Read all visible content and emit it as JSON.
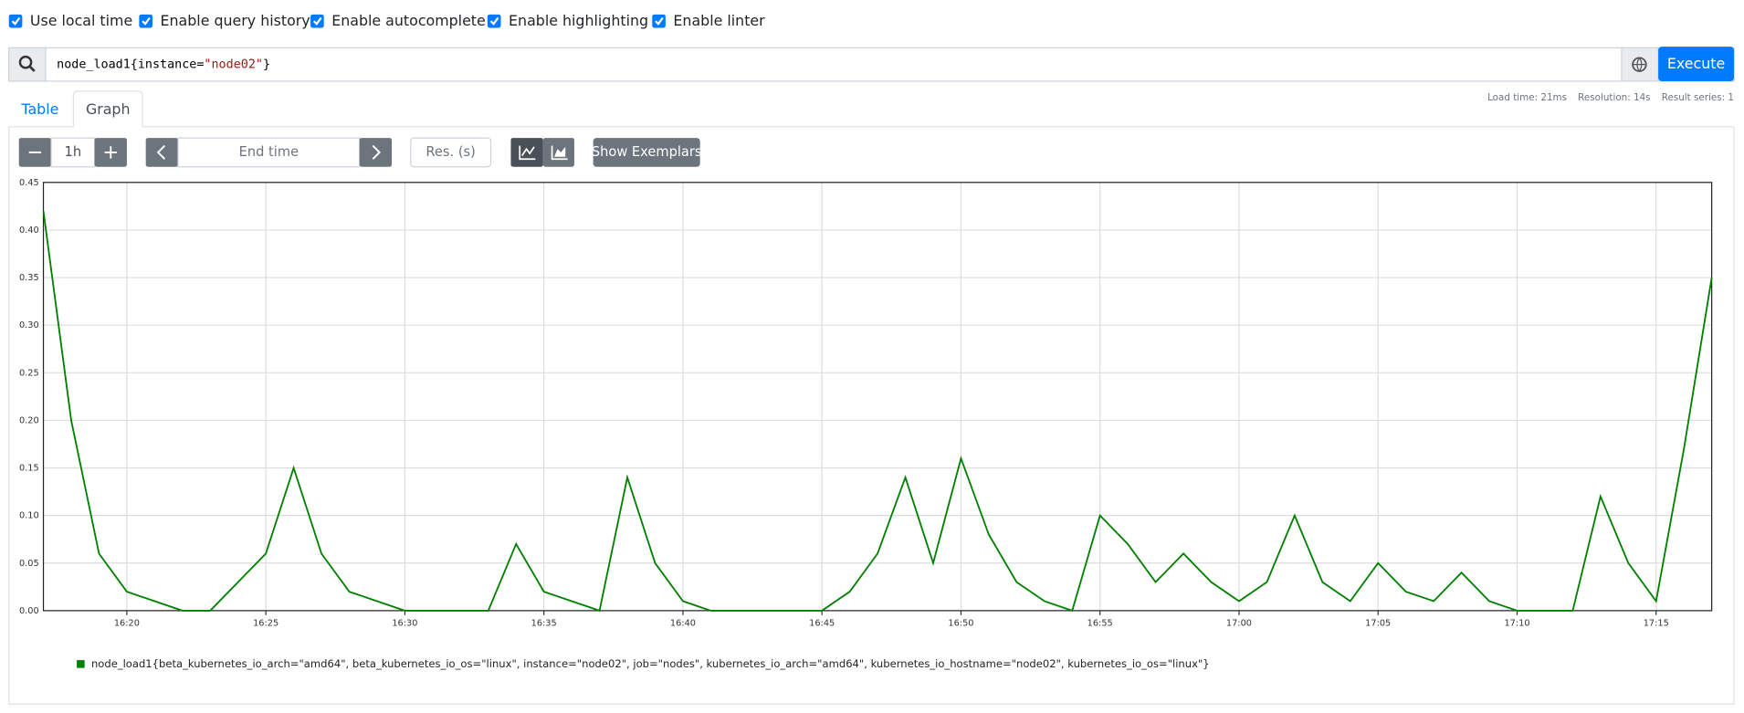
{
  "options": [
    {
      "label": "Use local time",
      "checked": true
    },
    {
      "label": "Enable query history",
      "checked": true
    },
    {
      "label": "Enable autocomplete",
      "checked": true
    },
    {
      "label": "Enable highlighting",
      "checked": true
    },
    {
      "label": "Enable linter",
      "checked": true
    }
  ],
  "query": [
    "node_load1",
    "{instance=",
    "\"node02\"",
    "}"
  ],
  "execute": "Execute",
  "stats": [
    "Load time: 21ms",
    "Resolution: 14s",
    "Result series: 1"
  ],
  "tabs": [
    "Table",
    "Graph"
  ],
  "controls": {
    "range": "1h",
    "end_time": "End time",
    "resolution": "Res. (s)",
    "exemplars": "Show Exemplars"
  },
  "chart_data": {
    "type": "line",
    "x": [
      "16:17",
      "16:18",
      "16:19",
      "16:20",
      "16:21",
      "16:22",
      "16:23",
      "16:24",
      "16:25",
      "16:26",
      "16:27",
      "16:28",
      "16:29",
      "16:30",
      "16:31",
      "16:32",
      "16:33",
      "16:34",
      "16:35",
      "16:36",
      "16:37",
      "16:38",
      "16:39",
      "16:40",
      "16:41",
      "16:42",
      "16:43",
      "16:44",
      "16:45",
      "16:46",
      "16:47",
      "16:48",
      "16:49",
      "16:50",
      "16:51",
      "16:52",
      "16:53",
      "16:54",
      "16:55",
      "16:56",
      "16:57",
      "16:58",
      "16:59",
      "17:00",
      "17:01",
      "17:02",
      "17:03",
      "17:04",
      "17:05",
      "17:06",
      "17:07",
      "17:08",
      "17:09",
      "17:10",
      "17:11",
      "17:12",
      "17:13",
      "17:14",
      "17:15",
      "17:16",
      "17:17"
    ],
    "series": [
      {
        "name": "node_load1{beta_kubernetes_io_arch=\"amd64\", beta_kubernetes_io_os=\"linux\", instance=\"node02\", job=\"nodes\", kubernetes_io_arch=\"amd64\", kubernetes_io_hostname=\"node02\", kubernetes_io_os=\"linux\"}",
        "color": "#008000",
        "values": [
          0.42,
          0.2,
          0.06,
          0.02,
          0.01,
          0,
          0,
          0.03,
          0.06,
          0.15,
          0.06,
          0.02,
          0.01,
          0,
          0,
          0,
          0,
          0.07,
          0.02,
          0.01,
          0,
          0.14,
          0.05,
          0.01,
          0,
          0,
          0,
          0,
          0,
          0.02,
          0.06,
          0.14,
          0.05,
          0.16,
          0.08,
          0.03,
          0.01,
          0,
          0.1,
          0.07,
          0.03,
          0.06,
          0.03,
          0.01,
          0.03,
          0.1,
          0.03,
          0.01,
          0.05,
          0.02,
          0.01,
          0.04,
          0.01,
          0,
          0,
          0,
          0.12,
          0.05,
          0.01,
          0.17,
          0.35
        ]
      }
    ],
    "xlim": [
      "16:17",
      "17:17"
    ],
    "xticks": [
      "16:20",
      "16:25",
      "16:30",
      "16:35",
      "16:40",
      "16:45",
      "16:50",
      "16:55",
      "17:00",
      "17:05",
      "17:10",
      "17:15"
    ],
    "ylim": [
      0,
      0.45
    ],
    "yticks": [
      {
        "value": 0,
        "label": "0.00"
      },
      {
        "value": 0.05,
        "label": "0.05"
      },
      {
        "value": 0.1,
        "label": "0.10"
      },
      {
        "value": 0.15,
        "label": "0.15"
      },
      {
        "value": 0.2,
        "label": "0.20"
      },
      {
        "value": 0.25,
        "label": "0.25"
      },
      {
        "value": 0.3,
        "label": "0.30"
      },
      {
        "value": 0.35,
        "label": "0.35"
      },
      {
        "value": 0.4,
        "label": "0.40"
      },
      {
        "value": 0.45,
        "label": "0.45"
      }
    ],
    "grid": true
  }
}
